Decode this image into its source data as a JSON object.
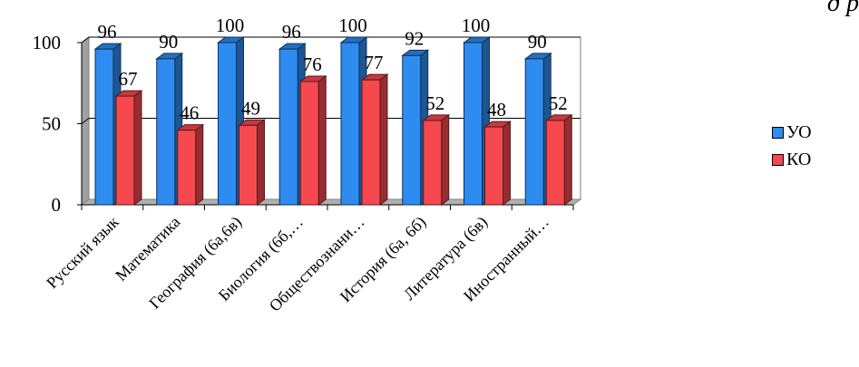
{
  "chart_data": {
    "type": "bar",
    "title_fragment": "д  р",
    "categories": [
      "Русский язык",
      "Математика",
      "География (6а,6в)",
      "Биология (6б,…",
      "Обществознани…",
      "История (6а, 6б)",
      "Литература (6в)",
      "Иностранный…"
    ],
    "series": [
      {
        "name": "УО",
        "color": "#2e8bf0",
        "values": [
          96,
          90,
          100,
          96,
          100,
          92,
          100,
          90
        ]
      },
      {
        "name": "КО",
        "color": "#f5484f",
        "values": [
          67,
          46,
          49,
          76,
          77,
          52,
          48,
          52
        ]
      }
    ],
    "yticks": [
      0,
      50,
      100
    ],
    "ylim": [
      0,
      100
    ],
    "legend_position": "right",
    "grid": true
  }
}
